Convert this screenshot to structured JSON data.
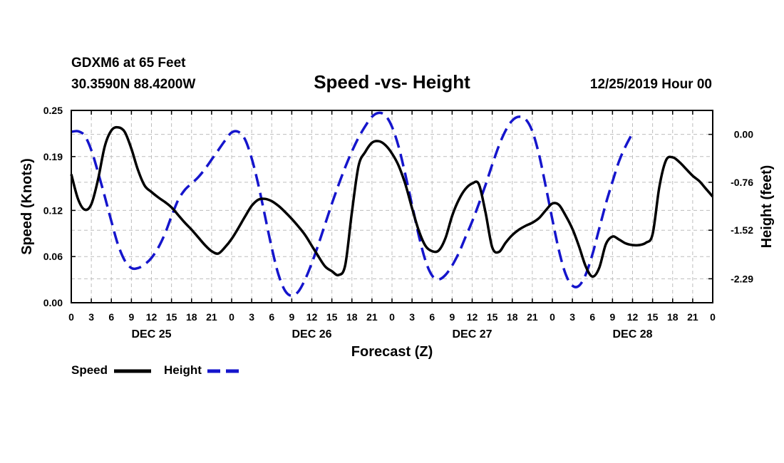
{
  "header": {
    "station": "GDXM6 at 65 Feet",
    "coords": "30.3590N 88.4200W",
    "date": "12/25/2019 Hour 00"
  },
  "chart_data": {
    "type": "line",
    "title": "Speed -vs- Height",
    "xlabel": "Forecast (Z)",
    "ylabel_left": "Speed (Knots)",
    "ylabel_right": "Height (feet)",
    "x_unit": "hours since 12/25/2019 00Z",
    "x_range": [
      0,
      96
    ],
    "x_ticks": [
      0,
      3,
      6,
      9,
      12,
      15,
      18,
      21,
      24,
      27,
      30,
      33,
      36,
      39,
      42,
      45,
      48,
      51,
      54,
      57,
      60,
      63,
      66,
      69,
      72,
      75,
      78,
      81,
      84,
      87,
      90,
      93,
      96
    ],
    "x_tick_labels": [
      "0",
      "3",
      "6",
      "9",
      "12",
      "15",
      "18",
      "21",
      "0",
      "3",
      "6",
      "9",
      "12",
      "15",
      "18",
      "21",
      "0",
      "3",
      "6",
      "9",
      "12",
      "15",
      "18",
      "21",
      "0",
      "3",
      "6",
      "9",
      "12",
      "15",
      "18",
      "21",
      "0"
    ],
    "day_labels": [
      {
        "hour": 12,
        "label": "DEC 25"
      },
      {
        "hour": 36,
        "label": "DEC 26"
      },
      {
        "hour": 60,
        "label": "DEC 27"
      },
      {
        "hour": 84,
        "label": "DEC 28"
      }
    ],
    "y_left": {
      "range": [
        0.0,
        0.25
      ],
      "ticks": [
        0.0,
        0.06,
        0.12,
        0.19,
        0.25
      ],
      "tick_labels": [
        "0.00",
        "0.06",
        "0.12",
        "0.19",
        "0.25"
      ]
    },
    "y_right": {
      "range": [
        -2.67,
        0.38
      ],
      "ticks": [
        0.0,
        -0.76,
        -1.52,
        -2.29
      ],
      "tick_labels": [
        "0.00",
        "-0.76",
        "-1.52",
        "-2.29"
      ]
    },
    "grid": true,
    "legend": {
      "position": "bottom-left",
      "entries": [
        "Speed",
        "Height"
      ]
    },
    "series": [
      {
        "name": "Speed",
        "axis": "left",
        "color": "#000000",
        "style": "solid",
        "points": [
          [
            0,
            0.167
          ],
          [
            1,
            0.135
          ],
          [
            2,
            0.121
          ],
          [
            3,
            0.128
          ],
          [
            4,
            0.16
          ],
          [
            5,
            0.203
          ],
          [
            6,
            0.224
          ],
          [
            7,
            0.228
          ],
          [
            8,
            0.222
          ],
          [
            9,
            0.2
          ],
          [
            10,
            0.172
          ],
          [
            11,
            0.152
          ],
          [
            12,
            0.144
          ],
          [
            13,
            0.137
          ],
          [
            14,
            0.131
          ],
          [
            15,
            0.124
          ],
          [
            16,
            0.114
          ],
          [
            17,
            0.104
          ],
          [
            18,
            0.095
          ],
          [
            19,
            0.085
          ],
          [
            20,
            0.075
          ],
          [
            21,
            0.067
          ],
          [
            22,
            0.064
          ],
          [
            23,
            0.072
          ],
          [
            24,
            0.083
          ],
          [
            25,
            0.097
          ],
          [
            26,
            0.112
          ],
          [
            27,
            0.126
          ],
          [
            28,
            0.134
          ],
          [
            29,
            0.135
          ],
          [
            30,
            0.132
          ],
          [
            31,
            0.126
          ],
          [
            32,
            0.118
          ],
          [
            33,
            0.109
          ],
          [
            34,
            0.099
          ],
          [
            35,
            0.088
          ],
          [
            36,
            0.074
          ],
          [
            37,
            0.06
          ],
          [
            38,
            0.047
          ],
          [
            39,
            0.041
          ],
          [
            40,
            0.036
          ],
          [
            41,
            0.049
          ],
          [
            42,
            0.118
          ],
          [
            43,
            0.178
          ],
          [
            44,
            0.196
          ],
          [
            45,
            0.208
          ],
          [
            46,
            0.21
          ],
          [
            47,
            0.205
          ],
          [
            48,
            0.194
          ],
          [
            49,
            0.178
          ],
          [
            50,
            0.154
          ],
          [
            51,
            0.123
          ],
          [
            52,
            0.094
          ],
          [
            53,
            0.074
          ],
          [
            54,
            0.067
          ],
          [
            55,
            0.068
          ],
          [
            56,
            0.084
          ],
          [
            57,
            0.113
          ],
          [
            58,
            0.134
          ],
          [
            59,
            0.148
          ],
          [
            60,
            0.155
          ],
          [
            61,
            0.154
          ],
          [
            62,
            0.117
          ],
          [
            63,
            0.072
          ],
          [
            64,
            0.066
          ],
          [
            65,
            0.078
          ],
          [
            66,
            0.088
          ],
          [
            67,
            0.095
          ],
          [
            68,
            0.1
          ],
          [
            69,
            0.104
          ],
          [
            70,
            0.11
          ],
          [
            71,
            0.12
          ],
          [
            72,
            0.129
          ],
          [
            73,
            0.127
          ],
          [
            74,
            0.113
          ],
          [
            75,
            0.096
          ],
          [
            76,
            0.073
          ],
          [
            77,
            0.047
          ],
          [
            78,
            0.034
          ],
          [
            79,
            0.045
          ],
          [
            80,
            0.076
          ],
          [
            81,
            0.086
          ],
          [
            82,
            0.082
          ],
          [
            83,
            0.077
          ],
          [
            84,
            0.075
          ],
          [
            85,
            0.075
          ],
          [
            86,
            0.078
          ],
          [
            87,
            0.089
          ],
          [
            88,
            0.15
          ],
          [
            89,
            0.185
          ],
          [
            90,
            0.189
          ],
          [
            91,
            0.183
          ],
          [
            92,
            0.174
          ],
          [
            93,
            0.165
          ],
          [
            94,
            0.158
          ],
          [
            95,
            0.148
          ],
          [
            96,
            0.138
          ]
        ]
      },
      {
        "name": "Height",
        "axis": "right",
        "color": "#1515cc",
        "style": "dashed",
        "points": [
          [
            0,
            0.04
          ],
          [
            1,
            0.05
          ],
          [
            2,
            -0.02
          ],
          [
            3,
            -0.25
          ],
          [
            4,
            -0.6
          ],
          [
            5,
            -0.98
          ],
          [
            6,
            -1.38
          ],
          [
            7,
            -1.75
          ],
          [
            8,
            -2.0
          ],
          [
            9,
            -2.12
          ],
          [
            10,
            -2.12
          ],
          [
            11,
            -2.06
          ],
          [
            12,
            -1.96
          ],
          [
            13,
            -1.8
          ],
          [
            14,
            -1.58
          ],
          [
            15,
            -1.3
          ],
          [
            16,
            -1.04
          ],
          [
            17,
            -0.88
          ],
          [
            18,
            -0.78
          ],
          [
            19,
            -0.68
          ],
          [
            20,
            -0.55
          ],
          [
            21,
            -0.4
          ],
          [
            22,
            -0.25
          ],
          [
            23,
            -0.1
          ],
          [
            24,
            0.03
          ],
          [
            25,
            0.04
          ],
          [
            26,
            -0.08
          ],
          [
            27,
            -0.38
          ],
          [
            28,
            -0.8
          ],
          [
            29,
            -1.3
          ],
          [
            30,
            -1.8
          ],
          [
            31,
            -2.22
          ],
          [
            32,
            -2.48
          ],
          [
            33,
            -2.56
          ],
          [
            34,
            -2.49
          ],
          [
            35,
            -2.3
          ],
          [
            36,
            -2.04
          ],
          [
            37,
            -1.74
          ],
          [
            38,
            -1.42
          ],
          [
            39,
            -1.1
          ],
          [
            40,
            -0.8
          ],
          [
            41,
            -0.52
          ],
          [
            42,
            -0.27
          ],
          [
            43,
            -0.05
          ],
          [
            44,
            0.13
          ],
          [
            45,
            0.28
          ],
          [
            46,
            0.34
          ],
          [
            47,
            0.3
          ],
          [
            48,
            0.12
          ],
          [
            49,
            -0.2
          ],
          [
            50,
            -0.64
          ],
          [
            51,
            -1.12
          ],
          [
            52,
            -1.6
          ],
          [
            53,
            -2.0
          ],
          [
            54,
            -2.24
          ],
          [
            55,
            -2.3
          ],
          [
            56,
            -2.23
          ],
          [
            57,
            -2.08
          ],
          [
            58,
            -1.88
          ],
          [
            59,
            -1.63
          ],
          [
            60,
            -1.38
          ],
          [
            61,
            -1.1
          ],
          [
            62,
            -0.8
          ],
          [
            63,
            -0.48
          ],
          [
            64,
            -0.18
          ],
          [
            65,
            0.06
          ],
          [
            66,
            0.22
          ],
          [
            67,
            0.28
          ],
          [
            68,
            0.24
          ],
          [
            69,
            0.05
          ],
          [
            70,
            -0.32
          ],
          [
            71,
            -0.82
          ],
          [
            72,
            -1.35
          ],
          [
            73,
            -1.85
          ],
          [
            74,
            -2.22
          ],
          [
            75,
            -2.4
          ],
          [
            76,
            -2.4
          ],
          [
            77,
            -2.22
          ],
          [
            78,
            -1.9
          ],
          [
            79,
            -1.5
          ],
          [
            80,
            -1.1
          ],
          [
            81,
            -0.75
          ],
          [
            82,
            -0.42
          ],
          [
            83,
            -0.18
          ],
          [
            84,
            0.02
          ]
        ]
      }
    ]
  }
}
